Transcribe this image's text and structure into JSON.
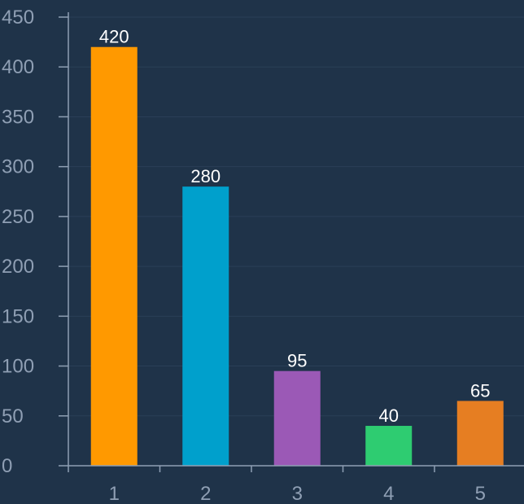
{
  "chart_data": {
    "type": "bar",
    "title": "",
    "xlabel": "",
    "ylabel": "",
    "categories": [
      "1",
      "2",
      "3",
      "4",
      "5"
    ],
    "values": [
      420,
      280,
      95,
      40,
      65
    ],
    "colors": [
      "#ff9900",
      "#00a0cc",
      "#9b59b6",
      "#2ecc71",
      "#e67e22"
    ],
    "ylim": [
      0,
      450
    ],
    "yticks": [
      0,
      50,
      100,
      150,
      200,
      250,
      300,
      350,
      400,
      450
    ],
    "grid": true,
    "legend": "none",
    "background": "#1f3349",
    "axis_color": "#8f9fb4",
    "label_color": "#ffffff"
  }
}
